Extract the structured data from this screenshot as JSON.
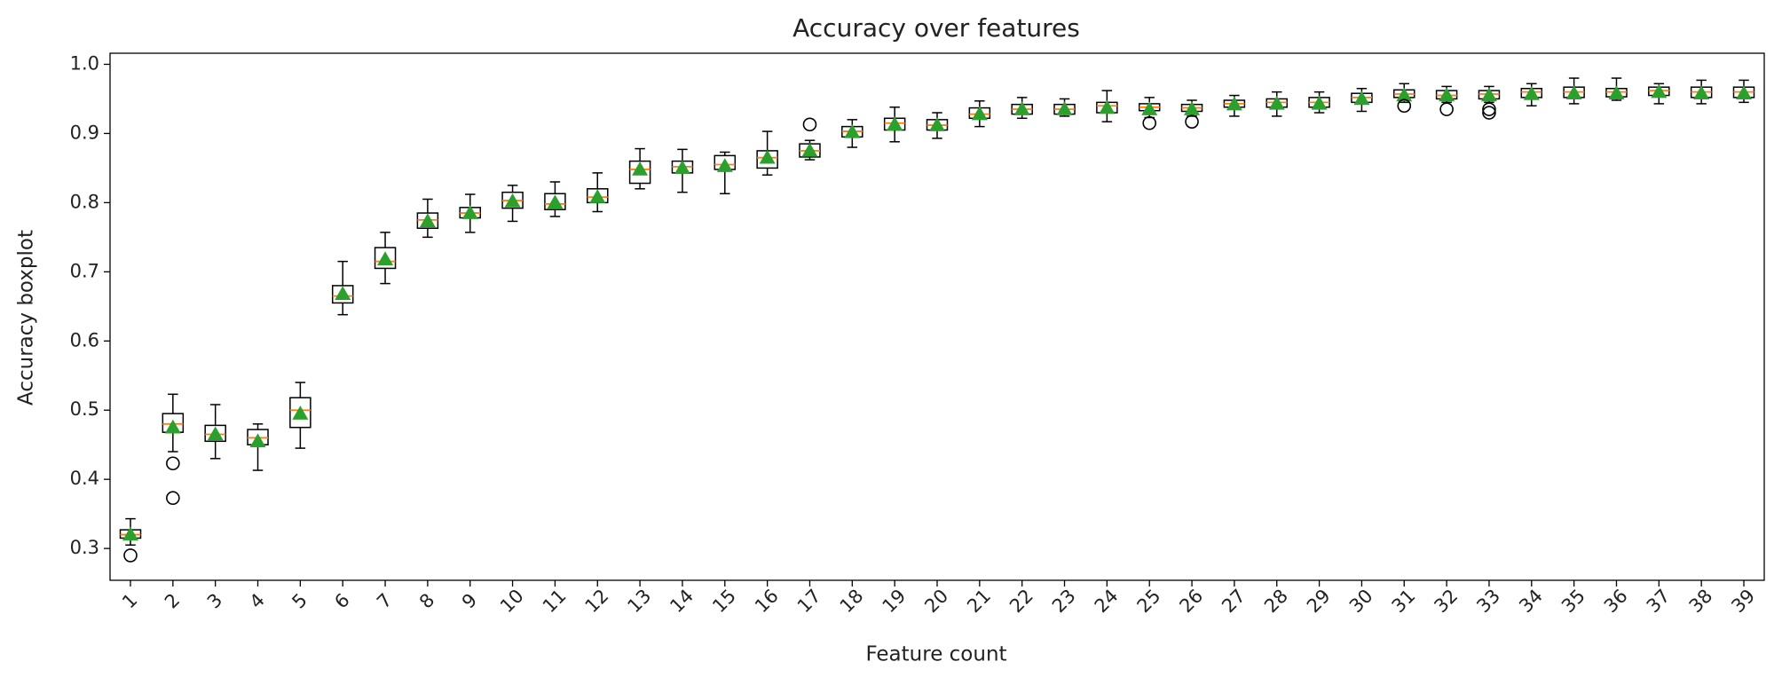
{
  "chart_data": {
    "type": "box",
    "title": "Accuracy over features",
    "xlabel": "Feature count",
    "ylabel": "Accuracy boxplot",
    "categories": [
      "1",
      "2",
      "3",
      "4",
      "5",
      "6",
      "7",
      "8",
      "9",
      "10",
      "11",
      "12",
      "13",
      "14",
      "15",
      "16",
      "17",
      "18",
      "19",
      "20",
      "21",
      "22",
      "23",
      "24",
      "25",
      "26",
      "27",
      "28",
      "29",
      "30",
      "31",
      "32",
      "33",
      "34",
      "35",
      "36",
      "37",
      "38",
      "39"
    ],
    "whislo": [
      0.305,
      0.44,
      0.43,
      0.413,
      0.445,
      0.638,
      0.683,
      0.75,
      0.757,
      0.773,
      0.78,
      0.787,
      0.82,
      0.815,
      0.813,
      0.84,
      0.862,
      0.88,
      0.888,
      0.893,
      0.91,
      0.922,
      0.925,
      0.917,
      0.923,
      0.925,
      0.925,
      0.925,
      0.93,
      0.932,
      0.945,
      0.945,
      0.945,
      0.94,
      0.943,
      0.948,
      0.943,
      0.943,
      0.945
    ],
    "q1": [
      0.315,
      0.468,
      0.455,
      0.45,
      0.475,
      0.655,
      0.705,
      0.763,
      0.778,
      0.792,
      0.79,
      0.8,
      0.828,
      0.843,
      0.848,
      0.85,
      0.866,
      0.895,
      0.905,
      0.905,
      0.922,
      0.928,
      0.928,
      0.93,
      0.933,
      0.932,
      0.938,
      0.938,
      0.938,
      0.945,
      0.952,
      0.95,
      0.95,
      0.952,
      0.952,
      0.953,
      0.955,
      0.952,
      0.952
    ],
    "median": [
      0.32,
      0.48,
      0.465,
      0.46,
      0.5,
      0.665,
      0.715,
      0.775,
      0.785,
      0.803,
      0.798,
      0.808,
      0.848,
      0.852,
      0.855,
      0.865,
      0.875,
      0.903,
      0.915,
      0.912,
      0.928,
      0.935,
      0.935,
      0.94,
      0.938,
      0.937,
      0.943,
      0.945,
      0.945,
      0.952,
      0.957,
      0.955,
      0.957,
      0.96,
      0.96,
      0.96,
      0.962,
      0.96,
      0.96
    ],
    "q3": [
      0.327,
      0.495,
      0.478,
      0.472,
      0.518,
      0.68,
      0.735,
      0.785,
      0.793,
      0.815,
      0.813,
      0.82,
      0.86,
      0.86,
      0.868,
      0.875,
      0.885,
      0.91,
      0.922,
      0.92,
      0.937,
      0.942,
      0.942,
      0.945,
      0.943,
      0.942,
      0.948,
      0.95,
      0.952,
      0.958,
      0.963,
      0.962,
      0.962,
      0.965,
      0.967,
      0.965,
      0.967,
      0.967,
      0.967
    ],
    "whishi": [
      0.343,
      0.523,
      0.508,
      0.48,
      0.54,
      0.715,
      0.757,
      0.805,
      0.812,
      0.825,
      0.83,
      0.843,
      0.878,
      0.877,
      0.873,
      0.903,
      0.89,
      0.92,
      0.938,
      0.93,
      0.947,
      0.952,
      0.95,
      0.962,
      0.952,
      0.948,
      0.955,
      0.96,
      0.96,
      0.965,
      0.972,
      0.968,
      0.968,
      0.972,
      0.98,
      0.98,
      0.972,
      0.977,
      0.977
    ],
    "mean": [
      0.32,
      0.475,
      0.465,
      0.455,
      0.495,
      0.668,
      0.718,
      0.773,
      0.785,
      0.802,
      0.8,
      0.808,
      0.848,
      0.85,
      0.853,
      0.865,
      0.875,
      0.902,
      0.913,
      0.912,
      0.928,
      0.935,
      0.935,
      0.937,
      0.935,
      0.935,
      0.942,
      0.943,
      0.943,
      0.95,
      0.955,
      0.955,
      0.955,
      0.957,
      0.958,
      0.958,
      0.96,
      0.958,
      0.958
    ],
    "fliers": [
      [
        0.29
      ],
      [
        0.423,
        0.373
      ],
      [],
      [],
      [],
      [],
      [],
      [],
      [],
      [],
      [],
      [],
      [],
      [],
      [],
      [],
      [
        0.913
      ],
      [],
      [],
      [],
      [],
      [],
      [],
      [],
      [
        0.915
      ],
      [
        0.917
      ],
      [],
      [],
      [],
      [],
      [
        0.94
      ],
      [
        0.935
      ],
      [
        0.935,
        0.93
      ],
      [],
      [],
      [],
      [],
      [],
      []
    ],
    "box_color": "#000000",
    "median_color": "#ff7f0e",
    "mean_color": "#2ca02c",
    "ylim": [
      0.254,
      1.016
    ],
    "yticks": [
      0.3,
      0.4,
      0.5,
      0.6,
      0.7,
      0.8,
      0.9,
      {
        "value": 1,
        "label": "1.0"
      }
    ]
  }
}
